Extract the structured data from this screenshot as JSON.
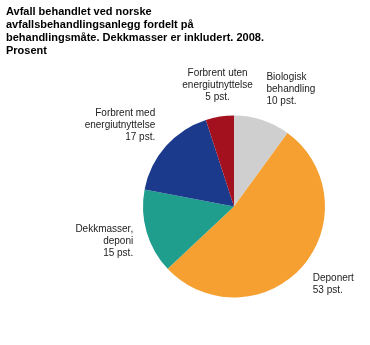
{
  "chart_data": {
    "type": "pie",
    "title": "Avfall behandlet ved norske avfallsbehandlingsanlegg fordelt på behandlingsmåte. Dekkmasser er inkludert. 2008. Prosent",
    "categories": [
      "Biologisk behandling",
      "Deponert",
      "Dekkmasser, deponi",
      "Forbrent med energiutnyttelse",
      "Forbrent uten energiutnyttelse"
    ],
    "values": [
      10,
      53,
      15,
      17,
      5
    ],
    "value_labels": [
      "10 pst.",
      "53 pst.",
      "15 pst.",
      "17 pst.",
      "5 pst."
    ],
    "colors": [
      "#cfcfcf",
      "#f5a031",
      "#1f9e8e",
      "#1b3a8c",
      "#a3111f"
    ],
    "data_labels": true
  }
}
